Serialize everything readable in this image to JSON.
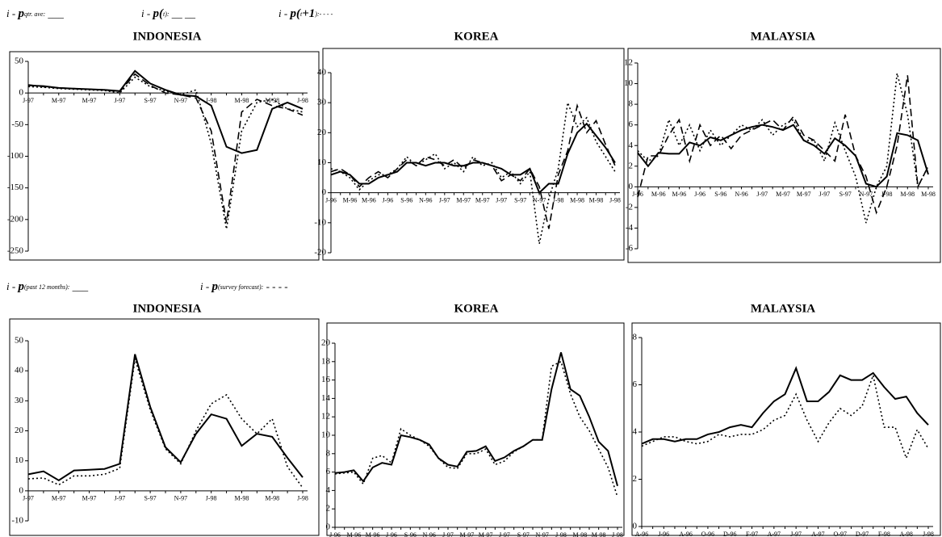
{
  "legends": [
    [
      [
        {
          "text": "i - ",
          "style": "plain"
        },
        {
          "text": "p",
          "style": "bold"
        },
        {
          "text": "qtr. ave:",
          "style": "sub"
        },
        {
          "text": " ___",
          "style": "plain"
        }
      ],
      [
        {
          "text": "i - ",
          "style": "plain"
        },
        {
          "text": "p(",
          "style": "bold"
        },
        {
          "text": "t",
          "style": "sub"
        },
        {
          "text": "):",
          "style": "sub"
        },
        {
          "text": " __ __",
          "style": "plain"
        }
      ],
      [
        {
          "text": "i - ",
          "style": "plain"
        },
        {
          "text": "p(",
          "style": "bold"
        },
        {
          "text": "t",
          "style": "sub"
        },
        {
          "text": "+1",
          "style": "bold"
        },
        {
          "text": "):- - - -",
          "style": "sub"
        }
      ]
    ],
    [
      [
        {
          "text": "i - ",
          "style": "plain"
        },
        {
          "text": "p",
          "style": "bold"
        },
        {
          "text": "(past 12 months):",
          "style": "sub"
        },
        {
          "text": " ___",
          "style": "plain"
        }
      ],
      [
        {
          "text": "i - ",
          "style": "plain"
        },
        {
          "text": "p",
          "style": "bold"
        },
        {
          "text": "(survey forecast):",
          "style": "sub"
        },
        {
          "text": " - - - -",
          "style": "plain"
        }
      ]
    ]
  ],
  "chart_data": [
    {
      "type": "line",
      "title": "INDONESIA",
      "categories": [
        "J-97",
        null,
        "M-97",
        null,
        "M-97",
        null,
        "J-97",
        null,
        "S-97",
        null,
        "N-97",
        null,
        "J-98",
        null,
        "M-98",
        null,
        "M-98",
        null,
        "J-98"
      ],
      "series": [
        {
          "color": "#000000",
          "style": "solid",
          "values": [
            12,
            11,
            8,
            7,
            6,
            5,
            3,
            35,
            15,
            5,
            -3,
            -5,
            -20,
            -85,
            -95,
            -90,
            -25,
            -15,
            -25
          ]
        },
        {
          "color": "#000000",
          "style": "dashed",
          "values": [
            13,
            10,
            8,
            7,
            6,
            5,
            2,
            30,
            12,
            0,
            -3,
            -8,
            -60,
            -205,
            -30,
            -10,
            -20,
            -25,
            -35
          ]
        },
        {
          "color": "#000000",
          "style": "dotted",
          "values": [
            10,
            9,
            7,
            6,
            5,
            4,
            0,
            25,
            10,
            3,
            -3,
            5,
            -80,
            -215,
            -60,
            -15,
            -10,
            -25,
            -30
          ]
        }
      ],
      "ylim": [
        -250,
        50
      ],
      "yticks": [
        -250,
        -200,
        -150,
        -100,
        -50,
        0,
        50
      ]
    },
    {
      "type": "line",
      "title": "KOREA",
      "categories": [
        "J-96",
        null,
        "M-96",
        null,
        "M-96",
        null,
        "J-96",
        null,
        "S-96",
        null,
        "N-96",
        null,
        "J-97",
        null,
        "M-97",
        null,
        "M-97",
        null,
        "J-97",
        null,
        "S-97",
        null,
        "N-97",
        null,
        "J-98",
        null,
        "M-98",
        null,
        "M-98",
        null,
        "J-98"
      ],
      "series": [
        {
          "color": "#000000",
          "style": "solid",
          "values": [
            6,
            7,
            6,
            3,
            3,
            5,
            6,
            7,
            10,
            10,
            9,
            10,
            10,
            9,
            9,
            10,
            10,
            9,
            8,
            6,
            6,
            8,
            0,
            3,
            3,
            13,
            20,
            23,
            19,
            15,
            10
          ]
        },
        {
          "color": "#000000",
          "style": "dashed",
          "values": [
            7,
            8,
            6,
            2,
            5,
            7,
            5,
            8,
            11,
            9,
            12,
            11,
            9,
            11,
            8,
            11,
            10,
            9,
            4,
            6,
            4,
            8,
            2,
            -12,
            6,
            14,
            29,
            20,
            24,
            16,
            9
          ]
        },
        {
          "color": "#000000",
          "style": "dotted",
          "values": [
            8,
            7,
            5,
            1,
            4,
            6,
            6,
            8,
            12,
            9,
            11,
            13,
            8,
            10,
            7,
            12,
            9,
            10,
            5,
            7,
            3,
            7,
            -17,
            -2,
            8,
            30,
            22,
            25,
            17,
            12,
            7
          ]
        }
      ],
      "ylim": [
        -20,
        40
      ],
      "yticks": [
        -20,
        -10,
        0,
        10,
        20,
        30,
        40
      ]
    },
    {
      "type": "line",
      "title": "MALAYSIA",
      "categories": [
        "J-96",
        null,
        "M-96",
        null,
        "M-96",
        null,
        "J-96",
        null,
        "S-96",
        null,
        "N-96",
        null,
        "J-97",
        null,
        "M-97",
        null,
        "M-97",
        null,
        "J-97",
        null,
        "S-97",
        null,
        "N-97",
        null,
        "J-98",
        null,
        "M-98",
        null,
        "M-98"
      ],
      "series": [
        {
          "color": "#000000",
          "style": "solid",
          "values": [
            3.3,
            2,
            3.3,
            3.2,
            3.2,
            4.3,
            4,
            4.8,
            4.5,
            5,
            5.5,
            5.8,
            6,
            5.8,
            5.5,
            6,
            4.5,
            4,
            3.2,
            4.7,
            4,
            3,
            0.3,
            0,
            1,
            5.2,
            5,
            4.5,
            1.2
          ]
        },
        {
          "color": "#000000",
          "style": "dashed",
          "values": [
            -1,
            3,
            3,
            5,
            6.5,
            2.5,
            6,
            4,
            5,
            3.7,
            5,
            5.5,
            6,
            6.5,
            5.5,
            6.8,
            5,
            4.5,
            3.5,
            2.5,
            7,
            3,
            1,
            -2.5,
            0,
            4,
            10.8,
            0,
            2
          ]
        },
        {
          "color": "#000000",
          "style": "dotted",
          "values": [
            3.5,
            2.5,
            3,
            6.5,
            4,
            6,
            3.5,
            5.5,
            4,
            5,
            6,
            5.5,
            6.5,
            5,
            6,
            6.5,
            4.5,
            4.5,
            2.5,
            6.2,
            3.5,
            1,
            -3.5,
            0,
            2,
            11,
            7,
            0,
            2
          ]
        }
      ],
      "ylim": [
        -6,
        12
      ],
      "yticks": [
        -6,
        -4,
        -2,
        0,
        2,
        4,
        6,
        8,
        10,
        12
      ]
    },
    {
      "type": "line",
      "title": "INDONESIA",
      "categories": [
        "J-97",
        null,
        "M-97",
        null,
        "M-97",
        null,
        "J-97",
        null,
        "S-97",
        null,
        "N-97",
        null,
        "J-98",
        null,
        "M-98",
        null,
        "M-98",
        null,
        "J-98"
      ],
      "series": [
        {
          "color": "#000000",
          "style": "solid",
          "values": [
            5.5,
            6.5,
            3.5,
            6.8,
            7,
            7.3,
            9,
            45.5,
            28,
            14.5,
            9.5,
            19,
            25.5,
            24,
            15,
            19,
            18,
            11,
            4.5
          ]
        },
        {
          "color": "#000000",
          "style": "dotted",
          "values": [
            4,
            4.3,
            2,
            5,
            5,
            5.5,
            7.5,
            44,
            27,
            14,
            9,
            20,
            29,
            32,
            24,
            19,
            24,
            8,
            1
          ]
        }
      ],
      "ylim": [
        -10,
        50
      ],
      "yticks": [
        -10,
        0,
        10,
        20,
        30,
        40,
        50
      ]
    },
    {
      "type": "line",
      "title": "KOREA",
      "categories": [
        "J-96",
        null,
        "M-96",
        null,
        "M-96",
        null,
        "J-96",
        null,
        "S-96",
        null,
        "N-96",
        null,
        "J-97",
        null,
        "M-97",
        null,
        "M-97",
        null,
        "J-97",
        null,
        "S-97",
        null,
        "N-97",
        null,
        "J-98",
        null,
        "M-98",
        null,
        "M-98",
        null,
        "J-98"
      ],
      "series": [
        {
          "color": "#000000",
          "style": "solid",
          "values": [
            5.9,
            6,
            6.2,
            5,
            6.5,
            7,
            6.8,
            10,
            9.8,
            9.5,
            9,
            7.5,
            6.8,
            6.6,
            8.2,
            8.3,
            8.8,
            7.2,
            7.6,
            8.3,
            8.8,
            9.5,
            9.5,
            15,
            19,
            15,
            14.3,
            12,
            9.3,
            8.3,
            4.5
          ]
        },
        {
          "color": "#000000",
          "style": "dotted",
          "values": [
            5.8,
            5.9,
            6,
            4.7,
            7.5,
            7.8,
            7,
            10.7,
            10,
            9.5,
            8.8,
            7.5,
            6.5,
            6.4,
            8,
            8,
            8.5,
            6.8,
            7.2,
            8.2,
            8.8,
            9.5,
            9.5,
            17.5,
            18,
            14.5,
            12,
            10.5,
            8.5,
            6.5,
            3.3
          ]
        }
      ],
      "ylim": [
        0,
        20
      ],
      "yticks": [
        0,
        2,
        4,
        6,
        8,
        10,
        12,
        14,
        16,
        18,
        20
      ]
    },
    {
      "type": "line",
      "title": "MALAYSIA",
      "categories": [
        "A-96",
        null,
        "J-96",
        null,
        "A-96",
        null,
        "O-96",
        null,
        "D-96",
        null,
        "F-97",
        null,
        "A-97",
        null,
        "J-97",
        null,
        "A-97",
        null,
        "O-97",
        null,
        "D-97",
        null,
        "F-98",
        null,
        "A-98",
        null,
        "J-98"
      ],
      "series": [
        {
          "color": "#000000",
          "style": "solid",
          "values": [
            3.5,
            3.7,
            3.7,
            3.6,
            3.7,
            3.7,
            3.9,
            4,
            4.2,
            4.3,
            4.2,
            4.8,
            5.3,
            5.6,
            6.7,
            5.3,
            5.3,
            5.7,
            6.4,
            6.2,
            6.2,
            6.5,
            5.9,
            5.4,
            5.5,
            4.8,
            4.3
          ]
        },
        {
          "color": "#000000",
          "style": "dotted",
          "values": [
            3.4,
            3.6,
            3.8,
            3.8,
            3.6,
            3.5,
            3.6,
            3.9,
            3.8,
            3.9,
            3.9,
            4.1,
            4.5,
            4.7,
            5.6,
            4.5,
            3.6,
            4.4,
            5,
            4.7,
            5.1,
            6.4,
            4.2,
            4.2,
            2.9,
            4.1,
            3.3
          ]
        }
      ],
      "ylim": [
        0,
        8
      ],
      "yticks": [
        0,
        2,
        4,
        6,
        8
      ]
    }
  ]
}
